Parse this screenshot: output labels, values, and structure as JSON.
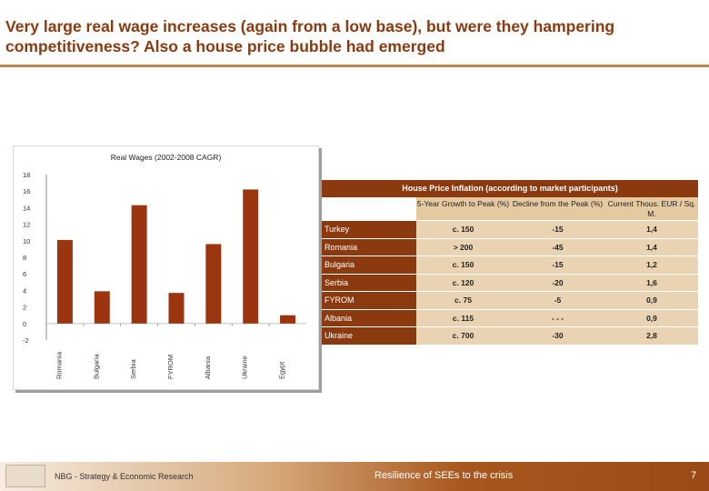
{
  "slide": {
    "title": "Very large real wage increases (again from a low base), but were they hampering competitiveness? Also a house price bubble had emerged"
  },
  "chart_data": {
    "type": "bar",
    "title": "Real Wages (2002-2008 CAGR)",
    "categories": [
      "Romania",
      "Bulgaria",
      "Serbia",
      "FYROM",
      "Albania",
      "Ukraine",
      "Egypt"
    ],
    "values": [
      10.1,
      3.9,
      14.3,
      3.7,
      9.6,
      16.2,
      1.0
    ],
    "ylim": [
      -2,
      18
    ],
    "yticks": [
      18,
      16,
      14,
      12,
      10,
      8,
      6,
      4,
      2,
      0,
      -2
    ],
    "colors": {
      "bar": "#9b3510",
      "axis": "#888888"
    }
  },
  "house_table": {
    "title": "House Price Inflation (according to market participants)",
    "headers": [
      "5-Year Growth to Peak (%)",
      "Decline from the Peak (%)",
      "Current Thous. EUR / Sq. M."
    ],
    "rows": [
      {
        "country": "Turkey",
        "growth": "c. 150",
        "decline": "-15",
        "price": "1,4"
      },
      {
        "country": "Romania",
        "growth": "> 200",
        "decline": "-45",
        "price": "1,4"
      },
      {
        "country": "Bulgaria",
        "growth": "c. 150",
        "decline": "-15",
        "price": "1,2"
      },
      {
        "country": "Serbia",
        "growth": "c. 120",
        "decline": "-20",
        "price": "1,6"
      },
      {
        "country": "FYROM",
        "growth": "c. 75",
        "decline": "-5",
        "price": "0,9"
      },
      {
        "country": "Albania",
        "growth": "c. 115",
        "decline": "- - -",
        "price": "0,9"
      },
      {
        "country": "Ukraine",
        "growth": "c. 700",
        "decline": "-30",
        "price": "2,8"
      }
    ]
  },
  "footer": {
    "left": "NBG - Strategy & Economic Research",
    "center": "Resilience of SEEs to the crisis",
    "page": "7"
  }
}
